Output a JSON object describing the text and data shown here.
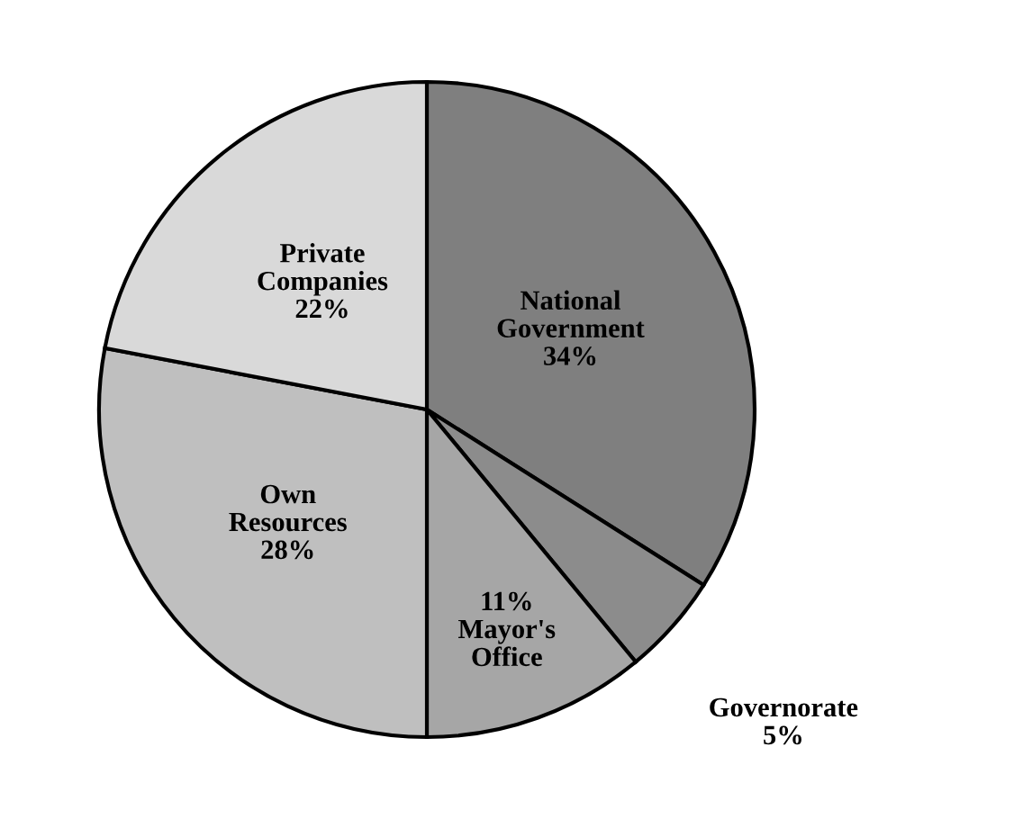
{
  "chart_data": {
    "type": "pie",
    "categories": [
      "National\nGovernment",
      "Governorate",
      "Mayor's\nOffice",
      "Own\nResources",
      "Private\nCompanies"
    ],
    "values": [
      34,
      5,
      11,
      28,
      22
    ],
    "colors": [
      "#7f7f7f",
      "#8c8c8c",
      "#a6a6a6",
      "#bfbfbf",
      "#d9d9d9"
    ],
    "value_labels": [
      "34%",
      "5%",
      "11%",
      "28%",
      "22%"
    ]
  }
}
